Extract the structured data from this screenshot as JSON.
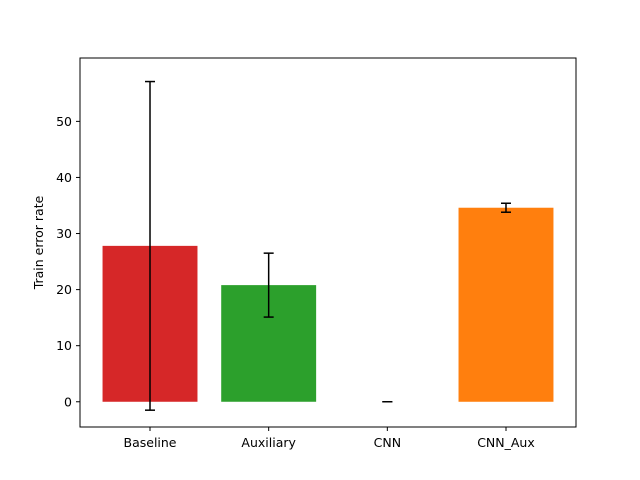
{
  "chart_data": {
    "type": "bar",
    "categories": [
      "Baseline",
      "Auxiliary",
      "CNN",
      "CNN_Aux"
    ],
    "values": [
      27.8,
      20.8,
      0.0,
      34.6
    ],
    "errors": [
      29.3,
      5.7,
      0.0,
      0.8
    ],
    "colors": [
      "#d62728",
      "#2ca02c",
      "#1f77b4",
      "#ff7f0e"
    ],
    "title": "",
    "xlabel": "",
    "ylabel": "Train error rate",
    "ylim": [
      -4.5,
      61.3
    ],
    "yticks": [
      0,
      10,
      20,
      30,
      40,
      50
    ],
    "grid": false,
    "legend": "none"
  }
}
